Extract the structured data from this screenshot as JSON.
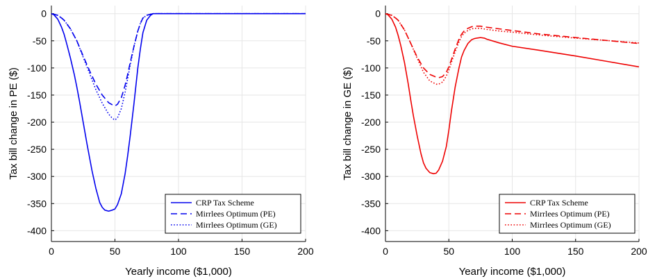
{
  "chart_data": [
    {
      "type": "line",
      "xlabel": "Yearly income ($1,000)",
      "ylabel": "Tax bill change in PE ($)",
      "xlim": [
        0,
        200
      ],
      "ylim": [
        -420,
        15
      ],
      "xticks": [
        0,
        50,
        100,
        150,
        200
      ],
      "xtick_labels": [
        "0",
        "50",
        "100",
        "150",
        "200"
      ],
      "yticks": [
        0,
        -50,
        -100,
        -150,
        -200,
        -250,
        -300,
        -350,
        -400
      ],
      "ytick_labels": [
        "0",
        "-50",
        "-100",
        "-150",
        "-200",
        "-250",
        "-300",
        "-350",
        "-400"
      ],
      "grid": true,
      "legend_position": "bottom-right",
      "series": [
        {
          "name": "CRP Tax Scheme",
          "color": "#0000ee",
          "dash": "solid",
          "x": [
            0,
            2,
            5,
            8,
            10,
            12,
            15,
            18,
            20,
            22,
            25,
            28,
            30,
            32,
            35,
            38,
            40,
            42,
            45,
            48,
            50,
            52,
            55,
            58,
            60,
            62,
            65,
            68,
            70,
            72,
            75,
            78,
            80,
            82,
            85,
            90,
            100,
            120,
            150,
            200
          ],
          "y": [
            0,
            -2,
            -10,
            -25,
            -38,
            -55,
            -82,
            -112,
            -135,
            -160,
            -200,
            -240,
            -265,
            -290,
            -322,
            -348,
            -357,
            -362,
            -364,
            -362,
            -360,
            -352,
            -332,
            -295,
            -262,
            -225,
            -165,
            -100,
            -65,
            -35,
            -12,
            -3,
            0,
            0,
            0,
            0,
            0,
            0,
            0,
            0
          ]
        },
        {
          "name": "Mirrlees Optimum (PE)",
          "color": "#0000ee",
          "dash": "dash",
          "x": [
            0,
            5,
            8,
            10,
            15,
            20,
            25,
            30,
            35,
            40,
            45,
            48,
            50,
            52,
            55,
            58,
            60,
            62,
            65,
            68,
            70,
            72,
            75,
            78,
            80,
            85,
            100,
            150,
            200
          ],
          "y": [
            0,
            -3,
            -8,
            -12,
            -28,
            -50,
            -78,
            -105,
            -130,
            -150,
            -164,
            -168,
            -170,
            -167,
            -155,
            -132,
            -112,
            -90,
            -60,
            -32,
            -18,
            -8,
            -3,
            -1,
            0,
            0,
            0,
            0,
            0
          ]
        },
        {
          "name": "Mirrlees Optimum (GE)",
          "color": "#0000ee",
          "dash": "dot",
          "x": [
            0,
            5,
            8,
            10,
            15,
            20,
            25,
            30,
            35,
            40,
            45,
            48,
            50,
            52,
            55,
            58,
            60,
            62,
            65,
            68,
            70,
            72,
            75,
            78,
            80,
            85,
            100,
            150,
            200
          ],
          "y": [
            0,
            -3,
            -8,
            -12,
            -28,
            -50,
            -80,
            -110,
            -140,
            -165,
            -185,
            -193,
            -196,
            -192,
            -175,
            -145,
            -120,
            -95,
            -60,
            -32,
            -18,
            -8,
            -3,
            -1,
            0,
            0,
            0,
            0,
            0
          ]
        }
      ]
    },
    {
      "type": "line",
      "xlabel": "Yearly income ($1,000)",
      "ylabel": "Tax bill change in GE ($)",
      "xlim": [
        0,
        200
      ],
      "ylim": [
        -420,
        15
      ],
      "xticks": [
        0,
        50,
        100,
        150,
        200
      ],
      "xtick_labels": [
        "0",
        "50",
        "100",
        "150",
        "200"
      ],
      "yticks": [
        0,
        -50,
        -100,
        -150,
        -200,
        -250,
        -300,
        -350,
        -400
      ],
      "ytick_labels": [
        "0",
        "-50",
        "-100",
        "-150",
        "-200",
        "-250",
        "-300",
        "-350",
        "-400"
      ],
      "grid": true,
      "legend_position": "bottom-right",
      "series": [
        {
          "name": "CRP Tax Scheme",
          "color": "#ee0000",
          "dash": "solid",
          "x": [
            0,
            2,
            5,
            8,
            10,
            12,
            15,
            18,
            20,
            22,
            25,
            28,
            30,
            32,
            35,
            38,
            40,
            42,
            45,
            48,
            50,
            52,
            55,
            58,
            60,
            62,
            65,
            68,
            70,
            72,
            75,
            78,
            80,
            90,
            100,
            120,
            150,
            175,
            200
          ],
          "y": [
            0,
            -2,
            -10,
            -25,
            -40,
            -58,
            -90,
            -130,
            -160,
            -188,
            -225,
            -258,
            -275,
            -285,
            -293,
            -295,
            -294,
            -288,
            -272,
            -245,
            -215,
            -180,
            -135,
            -100,
            -80,
            -68,
            -55,
            -48,
            -46,
            -45,
            -44,
            -45,
            -47,
            -54,
            -60,
            -67,
            -78,
            -88,
            -98
          ]
        },
        {
          "name": "Mirrlees Optimum (PE)",
          "color": "#ee0000",
          "dash": "dash",
          "x": [
            0,
            5,
            8,
            10,
            15,
            20,
            25,
            30,
            35,
            40,
            42,
            45,
            48,
            50,
            52,
            55,
            58,
            60,
            62,
            65,
            68,
            70,
            72,
            75,
            80,
            90,
            100,
            120,
            150,
            200
          ],
          "y": [
            0,
            -3,
            -8,
            -12,
            -30,
            -55,
            -80,
            -100,
            -112,
            -117,
            -118,
            -116,
            -108,
            -98,
            -85,
            -65,
            -47,
            -38,
            -32,
            -27,
            -24,
            -23,
            -23,
            -23,
            -25,
            -28,
            -31,
            -37,
            -44,
            -55
          ]
        },
        {
          "name": "Mirrlees Optimum (GE)",
          "color": "#ee0000",
          "dash": "dot",
          "x": [
            0,
            5,
            8,
            10,
            15,
            20,
            25,
            30,
            35,
            40,
            42,
            45,
            48,
            50,
            52,
            55,
            58,
            60,
            62,
            65,
            68,
            70,
            72,
            75,
            80,
            90,
            100,
            120,
            150,
            200
          ],
          "y": [
            0,
            -3,
            -8,
            -12,
            -30,
            -55,
            -82,
            -108,
            -124,
            -130,
            -130,
            -126,
            -115,
            -104,
            -90,
            -70,
            -52,
            -42,
            -36,
            -31,
            -28,
            -27,
            -27,
            -27,
            -29,
            -32,
            -34,
            -39,
            -45,
            -54
          ]
        }
      ]
    }
  ]
}
